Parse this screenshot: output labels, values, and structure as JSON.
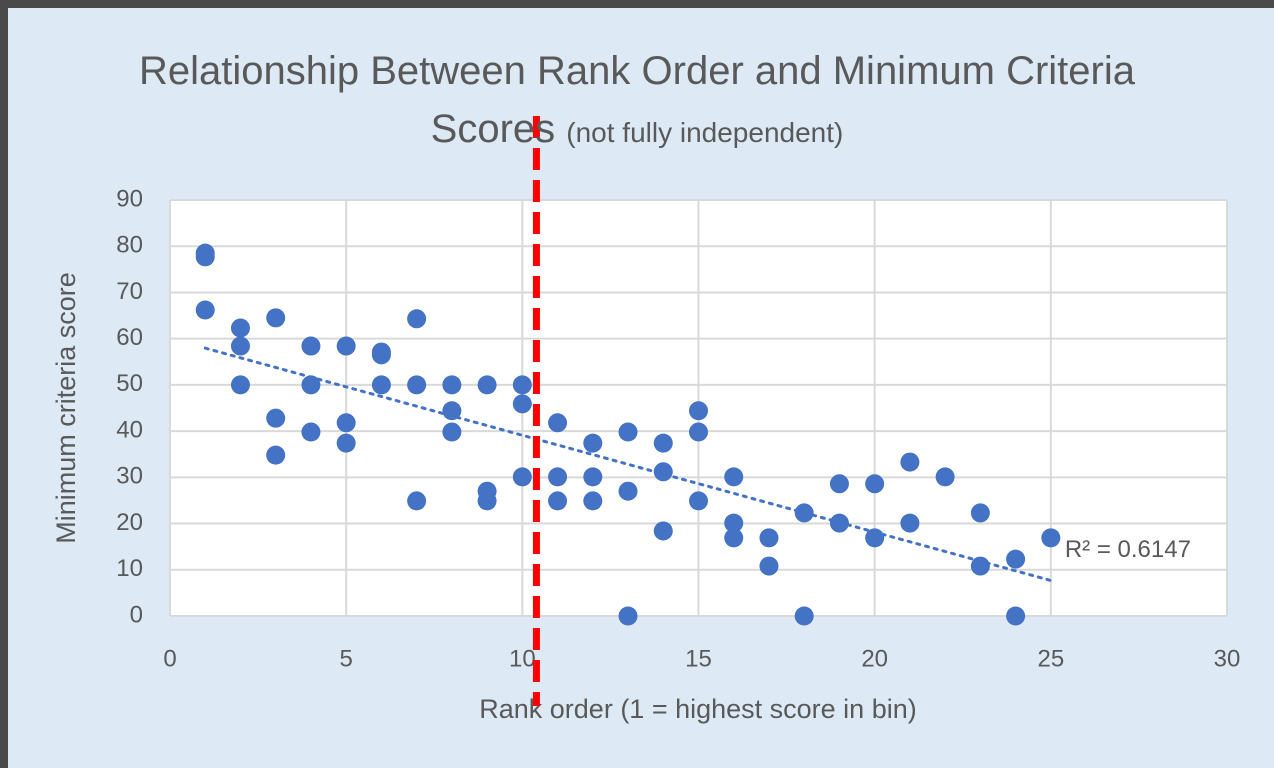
{
  "chart_data": {
    "type": "scatter",
    "title": "Relationship Between Rank Order and Minimum Criteria Scores",
    "subtitle": "(not fully independent)",
    "x_label": "Rank order (1 = highest score in bin)",
    "y_label": "Minimum criteria score",
    "x": [
      1,
      1,
      1,
      2,
      2,
      2,
      3,
      3,
      3,
      4,
      4,
      4,
      5,
      5,
      5,
      6,
      6,
      6,
      7,
      7,
      7,
      8,
      8,
      8,
      9,
      9,
      9,
      10,
      10,
      10,
      11,
      11,
      11,
      12,
      12,
      12,
      13,
      13,
      13,
      14,
      14,
      14,
      15,
      15,
      15,
      16,
      16,
      16,
      17,
      17,
      18,
      18,
      19,
      19,
      20,
      20,
      21,
      21,
      22,
      23,
      23,
      24,
      24,
      25
    ],
    "values": [
      78.5,
      77.7,
      66.2,
      62.3,
      58.4,
      50,
      64.5,
      42.8,
      34.8,
      58.4,
      50,
      39.8,
      58.4,
      41.8,
      37.4,
      57.1,
      56.5,
      50,
      64.3,
      50,
      24.9,
      50,
      44.4,
      39.8,
      50,
      27,
      24.9,
      50,
      45.9,
      30.1,
      41.8,
      30.1,
      24.9,
      37.4,
      30.1,
      24.9,
      39.8,
      27,
      0,
      37.4,
      31.2,
      18.4,
      44.4,
      39.8,
      24.9,
      30.1,
      20.1,
      16.9,
      16.9,
      10.8,
      22.3,
      0,
      28.6,
      20.1,
      28.6,
      16.9,
      33.3,
      20.1,
      30.1,
      22.3,
      10.8,
      12.3,
      0,
      16.9
    ],
    "color": "#4472c4",
    "trendline": "linear",
    "trendline_label": "R² = 0.6147",
    "reference_line": {
      "x": 10.4,
      "color": "#ff0000"
    },
    "xlim": [
      0,
      30
    ],
    "xticks": [
      0,
      5,
      10,
      15,
      20,
      25,
      30
    ],
    "ylim": [
      0,
      90
    ],
    "yticks": [
      0,
      10,
      20,
      30,
      40,
      50,
      60,
      70,
      80,
      90
    ],
    "grid": true
  }
}
